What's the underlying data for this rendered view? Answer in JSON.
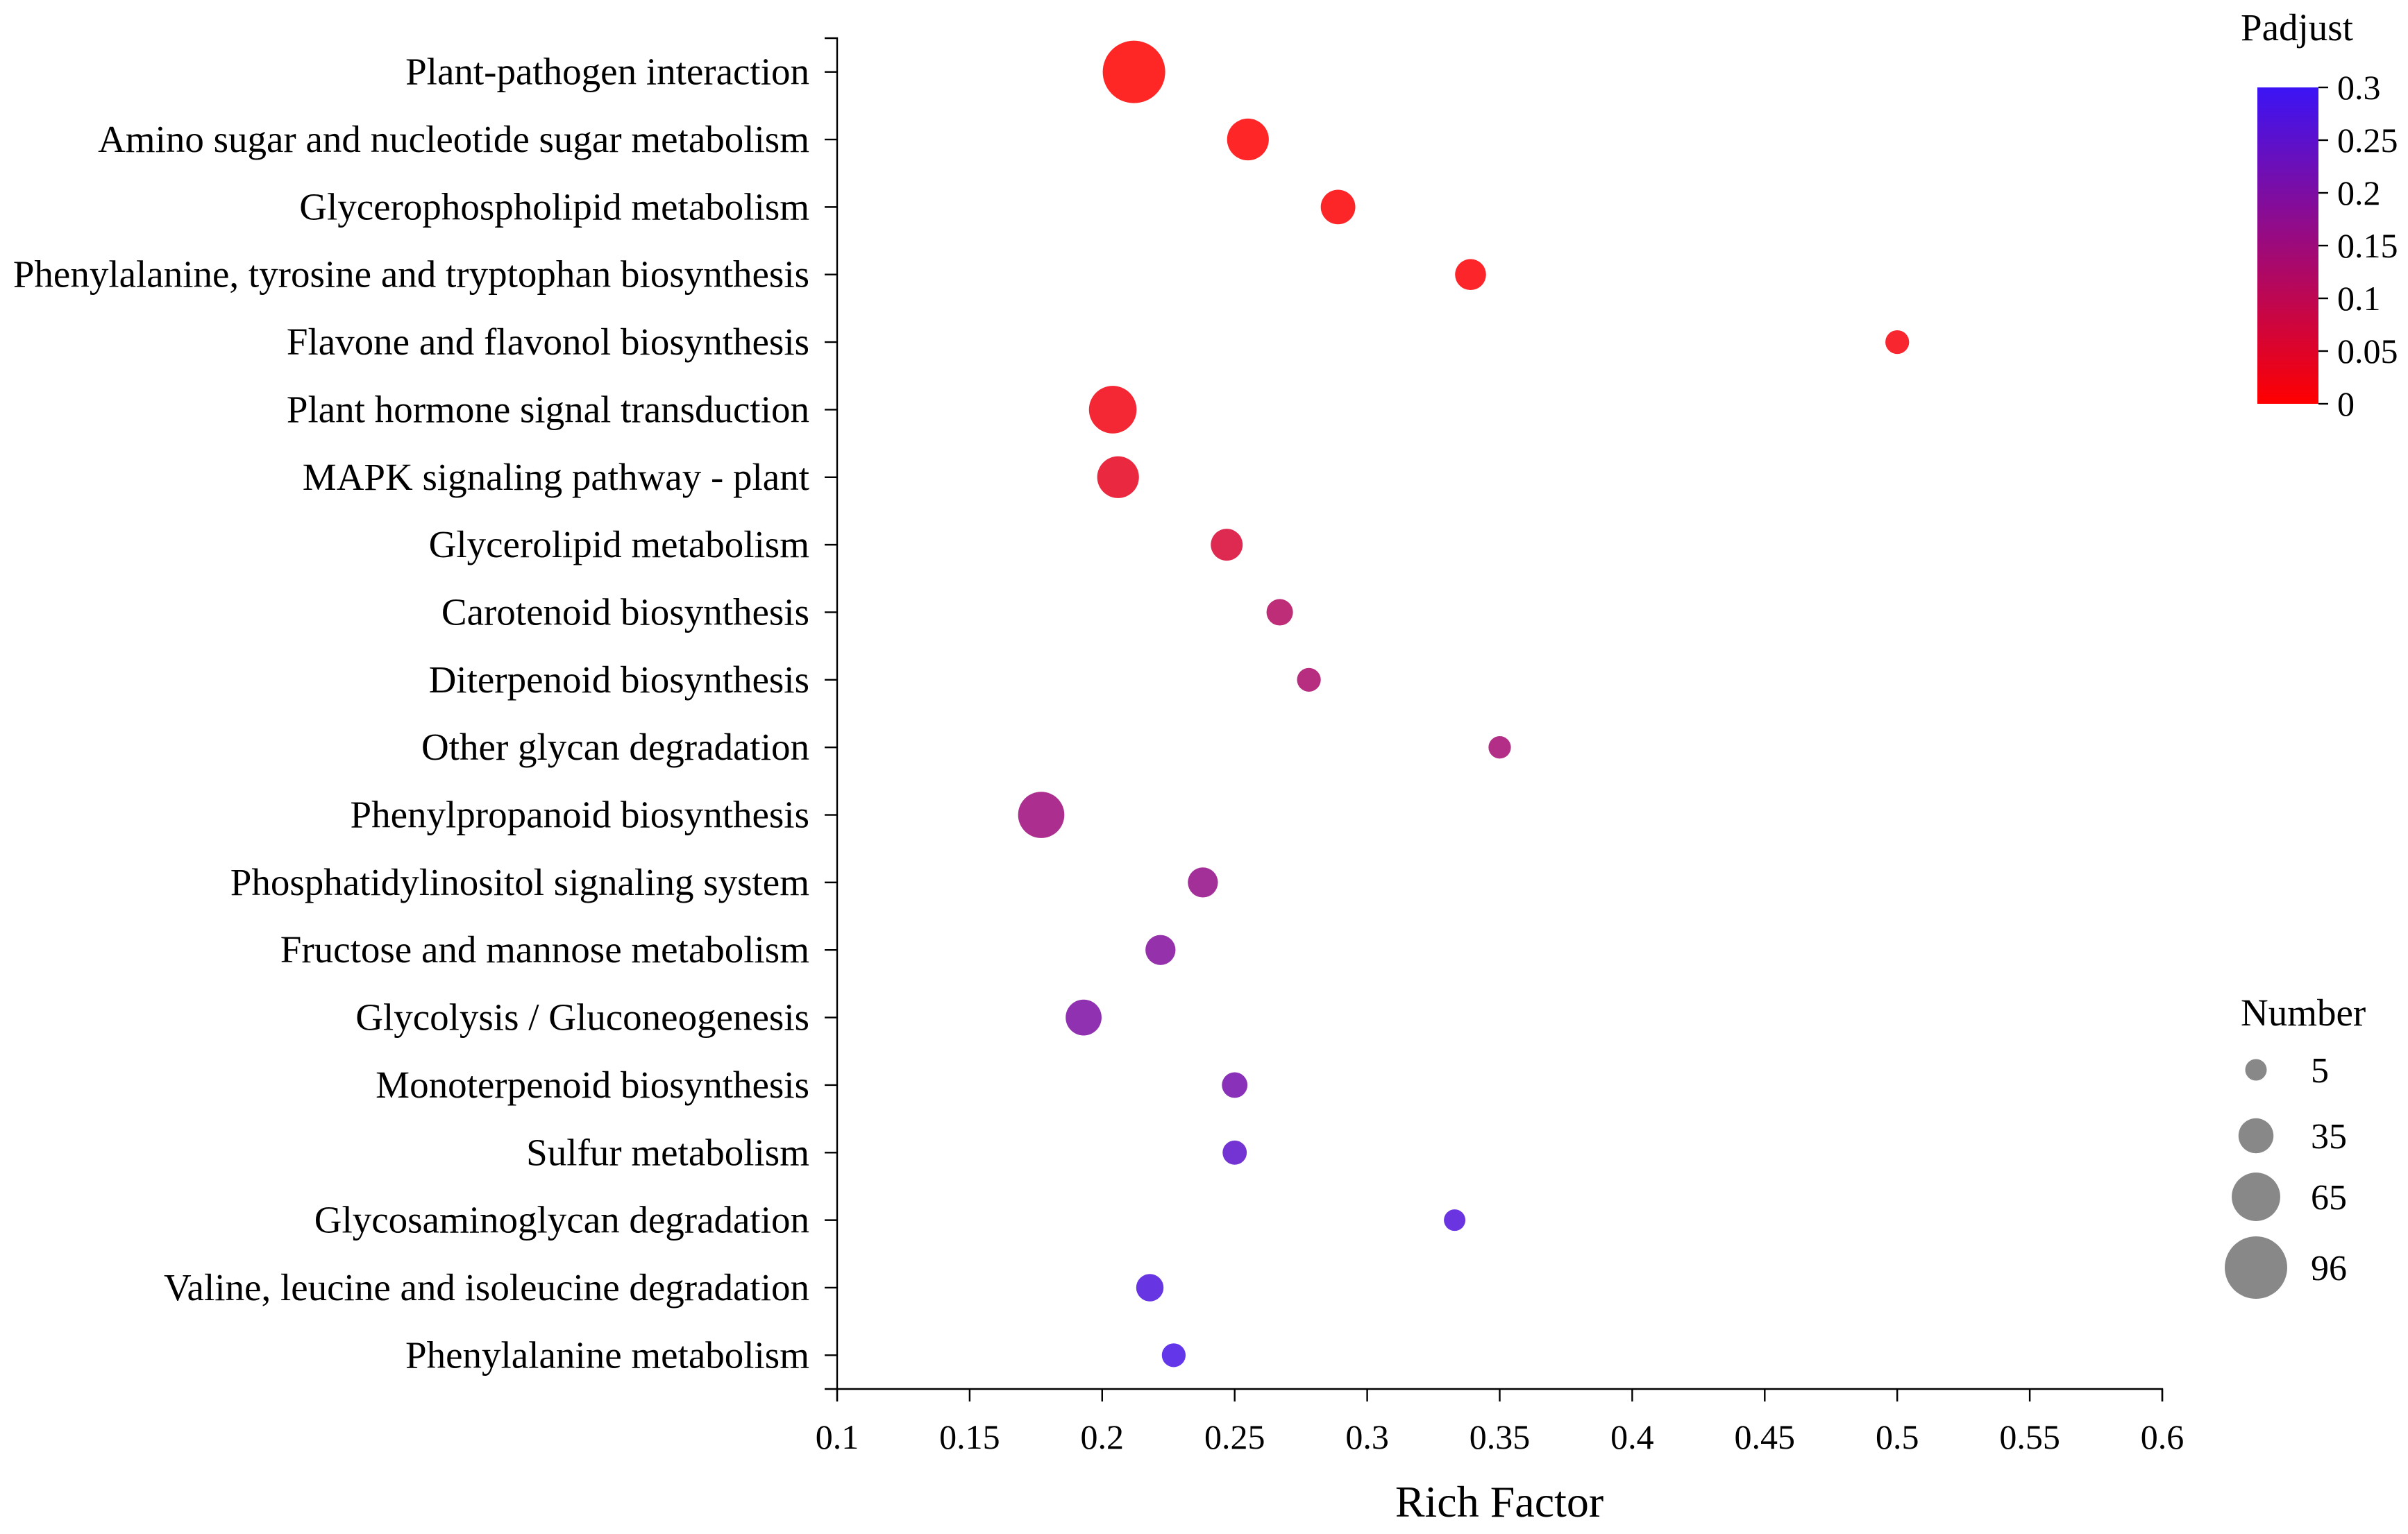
{
  "chart_data": {
    "type": "scatter",
    "xlabel": "Rich Factor",
    "xlim": [
      0.1,
      0.6
    ],
    "x_ticks": [
      0.1,
      0.15,
      0.2,
      0.25,
      0.3,
      0.35,
      0.4,
      0.45,
      0.5,
      0.55,
      0.6
    ],
    "grid": false,
    "categories": [
      "Plant-pathogen interaction",
      "Amino sugar and nucleotide sugar metabolism",
      "Glycerophospholipid metabolism",
      "Phenylalanine, tyrosine and tryptophan biosynthesis",
      "Flavone and flavonol biosynthesis",
      "Plant hormone signal transduction",
      "MAPK signaling pathway - plant",
      "Glycerolipid metabolism",
      "Carotenoid biosynthesis",
      "Diterpenoid biosynthesis",
      "Other glycan degradation",
      "Phenylpropanoid biosynthesis",
      "Phosphatidylinositol signaling system",
      "Fructose and mannose metabolism",
      "Glycolysis / Gluconeogenesis",
      "Monoterpenoid biosynthesis",
      "Sulfur metabolism",
      "Glycosaminoglycan degradation",
      "Valine, leucine and isoleucine degradation",
      "Phenylalanine metabolism"
    ],
    "rich_factor": [
      0.212,
      0.255,
      0.289,
      0.339,
      0.5,
      0.204,
      0.206,
      0.247,
      0.267,
      0.278,
      0.35,
      0.177,
      0.238,
      0.222,
      0.193,
      0.25,
      0.25,
      0.333,
      0.218,
      0.227
    ],
    "number": [
      96,
      50,
      34,
      26,
      10,
      63,
      50,
      28,
      16,
      10,
      7,
      60,
      24,
      24,
      37,
      14,
      11,
      5,
      18,
      10
    ],
    "padjust": [
      0.0,
      0.001,
      0.004,
      0.006,
      0.012,
      0.02,
      0.038,
      0.06,
      0.118,
      0.13,
      0.14,
      0.15,
      0.165,
      0.19,
      0.2,
      0.212,
      0.25,
      0.268,
      0.272,
      0.28
    ],
    "color_legend": {
      "title": "Padjust",
      "min": 0,
      "max": 0.3,
      "ticks": [
        0.3,
        0.25,
        0.2,
        0.15,
        0.1,
        0.05,
        0
      ],
      "low_color": "#ff0000",
      "high_color": "#3b14f5"
    },
    "size_legend": {
      "title": "Number",
      "values": [
        5,
        35,
        65,
        96
      ],
      "color": "#888888"
    }
  }
}
